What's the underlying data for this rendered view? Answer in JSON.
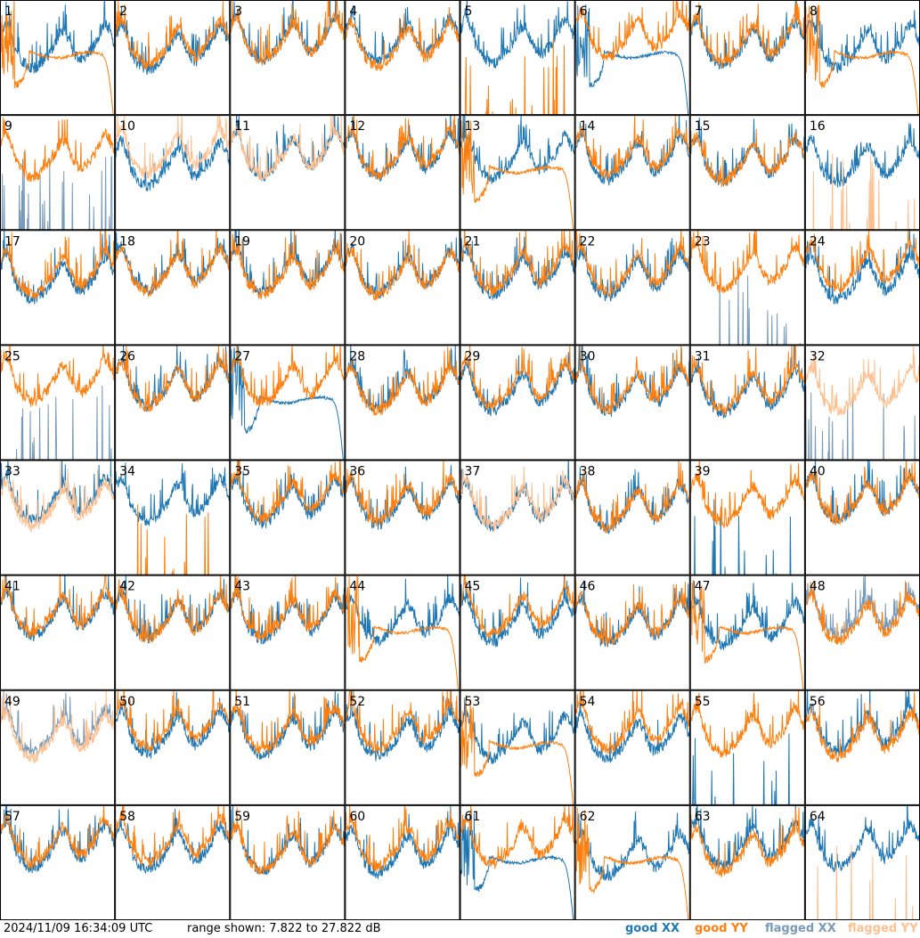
{
  "chart_data": {
    "type": "line",
    "title": "",
    "panels": [
      "1",
      "2",
      "3",
      "4",
      "5",
      "6",
      "7",
      "8",
      "9",
      "10",
      "11",
      "12",
      "13",
      "14",
      "15",
      "16",
      "17",
      "18",
      "19",
      "20",
      "21",
      "22",
      "23",
      "24",
      "25",
      "26",
      "27",
      "28",
      "29",
      "30",
      "31",
      "32",
      "33",
      "34",
      "35",
      "36",
      "37",
      "38",
      "39",
      "40",
      "41",
      "42",
      "43",
      "44",
      "45",
      "46",
      "47",
      "48",
      "49",
      "50",
      "51",
      "52",
      "53",
      "54",
      "55",
      "56",
      "57",
      "58",
      "59",
      "60",
      "61",
      "62",
      "63",
      "64"
    ],
    "ylim": [
      7.822,
      27.822
    ],
    "yunit": "dB",
    "legend": [
      {
        "label": "good XX",
        "color": "#1f77b4"
      },
      {
        "label": "good YY",
        "color": "#ff7f0e"
      },
      {
        "label": "flagged XX",
        "color": "#7a9bb8"
      },
      {
        "label": "flagged YY",
        "color": "#ffc090"
      }
    ],
    "legend_position": "bottom-right",
    "panel_traces": {
      "1": {
        "xx": "good",
        "yy": "good",
        "yy_shape": "decline"
      },
      "5": {
        "xx": "good",
        "yy": "good",
        "yy_shape": "spikes"
      },
      "6": {
        "xx": "good",
        "yy": "good",
        "xx_shape": "decline"
      },
      "8": {
        "xx": "good",
        "yy": "good",
        "yy_shape": "decline"
      },
      "9": {
        "xx": "flagged",
        "yy": "good",
        "xx_shape": "spikes"
      },
      "10": {
        "xx": "good",
        "yy": "flagged"
      },
      "11": {
        "xx": "good",
        "yy": "flagged"
      },
      "13": {
        "xx": "good",
        "yy": "good",
        "yy_shape": "decline"
      },
      "16": {
        "xx": "good",
        "yy": "flagged",
        "yy_shape": "spikes"
      },
      "23": {
        "xx": "flagged",
        "yy": "good",
        "xx_shape": "spikes"
      },
      "25": {
        "xx": "flagged",
        "yy": "good",
        "xx_shape": "spikes"
      },
      "27": {
        "xx": "good",
        "yy": "good",
        "xx_shape": "decline"
      },
      "32": {
        "xx": "flagged",
        "yy": "flagged",
        "xx_shape": "spikes"
      },
      "33": {
        "xx": "good",
        "yy": "flagged"
      },
      "34": {
        "xx": "good",
        "yy": "good",
        "yy_shape": "spikes"
      },
      "37": {
        "xx": "good",
        "yy": "flagged"
      },
      "39": {
        "xx": "good",
        "yy": "good",
        "xx_shape": "spikes"
      },
      "44": {
        "xx": "good",
        "yy": "good",
        "yy_shape": "decline"
      },
      "47": {
        "xx": "good",
        "yy": "good",
        "yy_shape": "decline"
      },
      "48": {
        "xx": "flagged",
        "yy": "good"
      },
      "49": {
        "xx": "flagged",
        "yy": "flagged"
      },
      "53": {
        "xx": "good",
        "yy": "good",
        "yy_shape": "decline"
      },
      "55": {
        "xx": "good",
        "yy": "good",
        "xx_shape": "spikes"
      },
      "61": {
        "xx": "good",
        "yy": "good",
        "xx_shape": "decline"
      },
      "62": {
        "xx": "good",
        "yy": "good",
        "yy_shape": "decline"
      },
      "64": {
        "xx": "good",
        "yy": "flagged",
        "yy_shape": "spikes"
      }
    }
  },
  "footer": {
    "timestamp": "2024/11/09 16:34:09 UTC",
    "range_text": "range shown: 7.822 to 27.822 dB"
  }
}
